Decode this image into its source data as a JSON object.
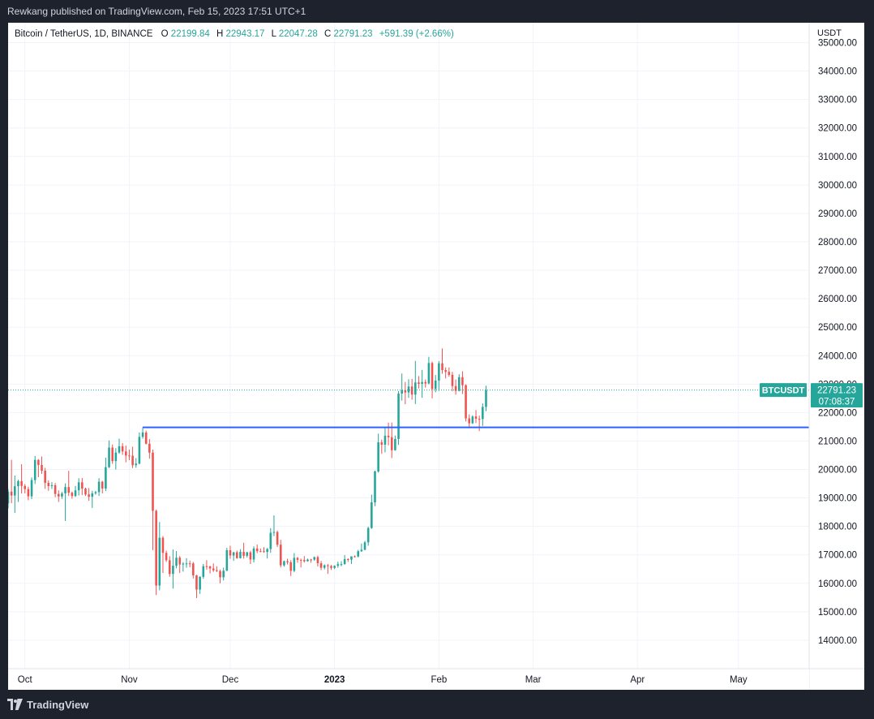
{
  "header": {
    "publisher_line": "Rewkang published on TradingView.com, Feb 15, 2023 17:51 UTC+1"
  },
  "footer": {
    "brand": "TradingView"
  },
  "colors": {
    "up": "#26a69a",
    "down": "#ef5350",
    "level_line": "#2962ff",
    "bg_dark": "#1e222d"
  },
  "chart_data": {
    "type": "candlestick",
    "title": "Bitcoin / TetherUS, 1D, BINANCE",
    "ohlc": {
      "open_label": "O",
      "open": "22199.84",
      "high_label": "H",
      "high": "22943.17",
      "low_label": "L",
      "low": "22047.28",
      "close_label": "C",
      "close": "22791.23",
      "change": "+591.39 (+2.66%)"
    },
    "currency": "USDT",
    "ylim": [
      13000,
      35700
    ],
    "y_ticks": [
      "35000.00",
      "34000.00",
      "33000.00",
      "32000.00",
      "31000.00",
      "30000.00",
      "29000.00",
      "28000.00",
      "27000.00",
      "26000.00",
      "25000.00",
      "24000.00",
      "23000.00",
      "22000.00",
      "21000.00",
      "20000.00",
      "19000.00",
      "18000.00",
      "17000.00",
      "16000.00",
      "15000.00",
      "14000.00"
    ],
    "x_ticks": [
      {
        "label": "Oct",
        "date": "2022-10-01",
        "bold": false
      },
      {
        "label": "Nov",
        "date": "2022-11-01",
        "bold": false
      },
      {
        "label": "Dec",
        "date": "2022-12-01",
        "bold": false
      },
      {
        "label": "2023",
        "date": "2023-01-01",
        "bold": true
      },
      {
        "label": "Feb",
        "date": "2023-02-01",
        "bold": false
      },
      {
        "label": "Mar",
        "date": "2023-03-01",
        "bold": false
      },
      {
        "label": "Apr",
        "date": "2023-04-01",
        "bold": false
      },
      {
        "label": "May",
        "date": "2023-05-01",
        "bold": false
      }
    ],
    "date_range": [
      "2022-09-26",
      "2023-05-22"
    ],
    "price_label": {
      "symbol": "BTCUSDT",
      "price": "22791.23",
      "countdown": "07:08:37",
      "value": 22791.23
    },
    "horizontal_line": {
      "value": 21480,
      "start_date": "2022-11-05"
    },
    "grid": true,
    "candles": [
      [
        "2022-09-26",
        18803,
        19316,
        18631,
        19222
      ],
      [
        "2022-09-27",
        19222,
        20337,
        18813,
        19085
      ],
      [
        "2022-09-28",
        19085,
        19790,
        18472,
        19412
      ],
      [
        "2022-09-29",
        19412,
        19644,
        18858,
        19591
      ],
      [
        "2022-09-30",
        19591,
        20185,
        19155,
        19422
      ],
      [
        "2022-10-01",
        19422,
        19485,
        19160,
        19312
      ],
      [
        "2022-10-02",
        19312,
        19395,
        18920,
        19057
      ],
      [
        "2022-10-03",
        19057,
        19719,
        18959,
        19629
      ],
      [
        "2022-10-04",
        19629,
        20475,
        19490,
        20337
      ],
      [
        "2022-10-05",
        20337,
        20365,
        19730,
        20159
      ],
      [
        "2022-10-06",
        20159,
        20456,
        19848,
        19959
      ],
      [
        "2022-10-07",
        19959,
        20057,
        19320,
        19531
      ],
      [
        "2022-10-08",
        19531,
        19621,
        19252,
        19417
      ],
      [
        "2022-10-09",
        19417,
        19556,
        19316,
        19446
      ],
      [
        "2022-10-10",
        19446,
        19526,
        19025,
        19141
      ],
      [
        "2022-10-11",
        19141,
        19267,
        18860,
        19052
      ],
      [
        "2022-10-12",
        19052,
        19215,
        18965,
        19157
      ],
      [
        "2022-10-13",
        19157,
        19513,
        18190,
        19382
      ],
      [
        "2022-10-14",
        19382,
        19951,
        19071,
        19185
      ],
      [
        "2022-10-15",
        19185,
        19224,
        18975,
        19067
      ],
      [
        "2022-10-16",
        19067,
        19420,
        19035,
        19269
      ],
      [
        "2022-10-17",
        19269,
        19692,
        19085,
        19549
      ],
      [
        "2022-10-18",
        19549,
        19700,
        19100,
        19328
      ],
      [
        "2022-10-19",
        19328,
        19360,
        19070,
        19123
      ],
      [
        "2022-10-20",
        19123,
        19347,
        18900,
        19041
      ],
      [
        "2022-10-21",
        19041,
        19250,
        18650,
        19164
      ],
      [
        "2022-10-22",
        19164,
        19250,
        19115,
        19205
      ],
      [
        "2022-10-23",
        19205,
        19695,
        19070,
        19570
      ],
      [
        "2022-10-24",
        19570,
        19601,
        19160,
        19330
      ],
      [
        "2022-10-25",
        19330,
        20413,
        19240,
        20080
      ],
      [
        "2022-10-26",
        20080,
        21020,
        20050,
        20771
      ],
      [
        "2022-10-27",
        20771,
        20876,
        20200,
        20295
      ],
      [
        "2022-10-28",
        20295,
        20750,
        20000,
        20595
      ],
      [
        "2022-10-29",
        20595,
        21085,
        20550,
        20818
      ],
      [
        "2022-10-30",
        20818,
        20930,
        20515,
        20635
      ],
      [
        "2022-10-31",
        20635,
        20840,
        20250,
        20490
      ],
      [
        "2022-11-01",
        20490,
        20700,
        20330,
        20483
      ],
      [
        "2022-11-02",
        20483,
        20800,
        20050,
        20151
      ],
      [
        "2022-11-03",
        20151,
        20400,
        20060,
        20207
      ],
      [
        "2022-11-04",
        20207,
        21300,
        20180,
        21148
      ],
      [
        "2022-11-05",
        21148,
        21480,
        21080,
        21299
      ],
      [
        "2022-11-06",
        21299,
        21365,
        20880,
        20905
      ],
      [
        "2022-11-07",
        20905,
        21070,
        20380,
        20591
      ],
      [
        "2022-11-08",
        20591,
        20700,
        17166,
        18547
      ],
      [
        "2022-11-09",
        18547,
        18594,
        15588,
        15922
      ],
      [
        "2022-11-10",
        15922,
        18154,
        15754,
        17601
      ],
      [
        "2022-11-11",
        17601,
        17659,
        16361,
        17070
      ],
      [
        "2022-11-12",
        17070,
        17148,
        16750,
        16812
      ],
      [
        "2022-11-13",
        16812,
        16954,
        16229,
        16330
      ],
      [
        "2022-11-14",
        16330,
        17190,
        15815,
        16619
      ],
      [
        "2022-11-15",
        16619,
        17134,
        16527,
        16900
      ],
      [
        "2022-11-16",
        16900,
        16960,
        16361,
        16662
      ],
      [
        "2022-11-17",
        16662,
        16747,
        16410,
        16692
      ],
      [
        "2022-11-18",
        16692,
        16885,
        16547,
        16700
      ],
      [
        "2022-11-19",
        16700,
        16800,
        16564,
        16699
      ],
      [
        "2022-11-20",
        16699,
        16750,
        16172,
        16280
      ],
      [
        "2022-11-21",
        16280,
        16299,
        15480,
        15781
      ],
      [
        "2022-11-22",
        15781,
        16253,
        15630,
        16226
      ],
      [
        "2022-11-23",
        16226,
        16679,
        16160,
        16603
      ],
      [
        "2022-11-24",
        16603,
        16812,
        16480,
        16598
      ],
      [
        "2022-11-25",
        16598,
        16611,
        16350,
        16522
      ],
      [
        "2022-11-26",
        16522,
        16700,
        16400,
        16458
      ],
      [
        "2022-11-27",
        16458,
        16600,
        16400,
        16428
      ],
      [
        "2022-11-28",
        16428,
        16482,
        16000,
        16212
      ],
      [
        "2022-11-29",
        16212,
        16550,
        16100,
        16442
      ],
      [
        "2022-11-30",
        16442,
        17250,
        16430,
        17163
      ],
      [
        "2022-12-01",
        17163,
        17320,
        16860,
        16977
      ],
      [
        "2022-12-02",
        16977,
        17100,
        16790,
        17092
      ],
      [
        "2022-12-03",
        17092,
        17150,
        16860,
        16885
      ],
      [
        "2022-12-04",
        16885,
        17200,
        16870,
        17105
      ],
      [
        "2022-12-05",
        17105,
        17424,
        16867,
        16966
      ],
      [
        "2022-12-06",
        16966,
        17107,
        16906,
        17089
      ],
      [
        "2022-12-07",
        17089,
        17140,
        16678,
        16836
      ],
      [
        "2022-12-08",
        16836,
        17299,
        16733,
        17224
      ],
      [
        "2022-12-09",
        17224,
        17360,
        17060,
        17129
      ],
      [
        "2022-12-10",
        17129,
        17227,
        17092,
        17128
      ],
      [
        "2022-12-11",
        17128,
        17270,
        17071,
        17104
      ],
      [
        "2022-12-12",
        17104,
        17242,
        16871,
        17206
      ],
      [
        "2022-12-13",
        17206,
        17939,
        17074,
        17775
      ],
      [
        "2022-12-14",
        17775,
        18387,
        17660,
        17804
      ],
      [
        "2022-12-15",
        17804,
        17854,
        17275,
        17356
      ],
      [
        "2022-12-16",
        17356,
        17530,
        16559,
        16632
      ],
      [
        "2022-12-17",
        16632,
        16796,
        16584,
        16776
      ],
      [
        "2022-12-18",
        16776,
        16863,
        16663,
        16738
      ],
      [
        "2022-12-19",
        16738,
        16815,
        16256,
        16438
      ],
      [
        "2022-12-20",
        16438,
        17061,
        16397,
        16895
      ],
      [
        "2022-12-21",
        16895,
        16925,
        16723,
        16825
      ],
      [
        "2022-12-22",
        16825,
        16866,
        16559,
        16821
      ],
      [
        "2022-12-23",
        16821,
        16955,
        16731,
        16778
      ],
      [
        "2022-12-24",
        16778,
        16869,
        16760,
        16836
      ],
      [
        "2022-12-25",
        16836,
        16860,
        16721,
        16832
      ],
      [
        "2022-12-26",
        16832,
        16944,
        16791,
        16919
      ],
      [
        "2022-12-27",
        16919,
        16972,
        16592,
        16706
      ],
      [
        "2022-12-28",
        16706,
        16785,
        16465,
        16547
      ],
      [
        "2022-12-29",
        16547,
        16664,
        16488,
        16633
      ],
      [
        "2022-12-30",
        16633,
        16677,
        16333,
        16607
      ],
      [
        "2022-12-31",
        16607,
        16644,
        16470,
        16542
      ],
      [
        "2023-01-01",
        16542,
        16630,
        16499,
        16616
      ],
      [
        "2023-01-02",
        16616,
        16760,
        16548,
        16672
      ],
      [
        "2023-01-03",
        16672,
        16778,
        16600,
        16675
      ],
      [
        "2023-01-04",
        16675,
        16991,
        16657,
        16850
      ],
      [
        "2023-01-05",
        16850,
        16879,
        16753,
        16831
      ],
      [
        "2023-01-06",
        16831,
        16950,
        16680,
        16950
      ],
      [
        "2023-01-07",
        16950,
        16980,
        16908,
        16943
      ],
      [
        "2023-01-08",
        16943,
        17176,
        16911,
        17127
      ],
      [
        "2023-01-09",
        17127,
        17398,
        17104,
        17178
      ],
      [
        "2023-01-10",
        17178,
        17490,
        17162,
        17440
      ],
      [
        "2023-01-11",
        17440,
        17990,
        17320,
        17943
      ],
      [
        "2023-01-12",
        17943,
        19117,
        17912,
        18846
      ],
      [
        "2023-01-13",
        18846,
        19964,
        18712,
        19930
      ],
      [
        "2023-01-14",
        19930,
        21258,
        19889,
        20955
      ],
      [
        "2023-01-15",
        20955,
        21050,
        20551,
        20872
      ],
      [
        "2023-01-16",
        20872,
        21467,
        20600,
        21186
      ],
      [
        "2023-01-17",
        21186,
        21647,
        20850,
        21134
      ],
      [
        "2023-01-18",
        21134,
        21650,
        20400,
        20677
      ],
      [
        "2023-01-19",
        20677,
        21194,
        20659,
        21072
      ],
      [
        "2023-01-20",
        21072,
        22755,
        20862,
        22667
      ],
      [
        "2023-01-21",
        22667,
        23371,
        22422,
        22784
      ],
      [
        "2023-01-22",
        22784,
        23078,
        22292,
        22707
      ],
      [
        "2023-01-23",
        22707,
        23170,
        22518,
        22916
      ],
      [
        "2023-01-24",
        22916,
        23180,
        22452,
        22632
      ],
      [
        "2023-01-25",
        22632,
        23816,
        22300,
        23060
      ],
      [
        "2023-01-26",
        23060,
        23282,
        22850,
        23009
      ],
      [
        "2023-01-27",
        23009,
        23500,
        22520,
        23074
      ],
      [
        "2023-01-28",
        23074,
        23165,
        22878,
        23022
      ],
      [
        "2023-01-29",
        23022,
        23960,
        22990,
        23743
      ],
      [
        "2023-01-30",
        23743,
        23790,
        22500,
        22827
      ],
      [
        "2023-01-31",
        22827,
        23320,
        22716,
        23125
      ],
      [
        "2023-02-01",
        23125,
        23812,
        22760,
        23733
      ],
      [
        "2023-02-02",
        23733,
        24255,
        23364,
        23492
      ],
      [
        "2023-02-03",
        23492,
        23589,
        23200,
        23431
      ],
      [
        "2023-02-04",
        23431,
        23585,
        23260,
        23326
      ],
      [
        "2023-02-05",
        23326,
        23431,
        22750,
        22932
      ],
      [
        "2023-02-06",
        22932,
        23160,
        22627,
        22762
      ],
      [
        "2023-02-07",
        22762,
        23350,
        22745,
        23244
      ],
      [
        "2023-02-08",
        23244,
        23453,
        22655,
        22963
      ],
      [
        "2023-02-09",
        22963,
        22994,
        21688,
        21796
      ],
      [
        "2023-02-10",
        21796,
        21938,
        21451,
        21625
      ],
      [
        "2023-02-11",
        21625,
        21906,
        21599,
        21862
      ],
      [
        "2023-02-12",
        21862,
        22090,
        21630,
        21783
      ],
      [
        "2023-02-13",
        21783,
        21894,
        21351,
        21773
      ],
      [
        "2023-02-14",
        21773,
        22322,
        21532,
        22199
      ],
      [
        "2023-02-15",
        22199,
        22943,
        22047,
        22791
      ]
    ]
  }
}
